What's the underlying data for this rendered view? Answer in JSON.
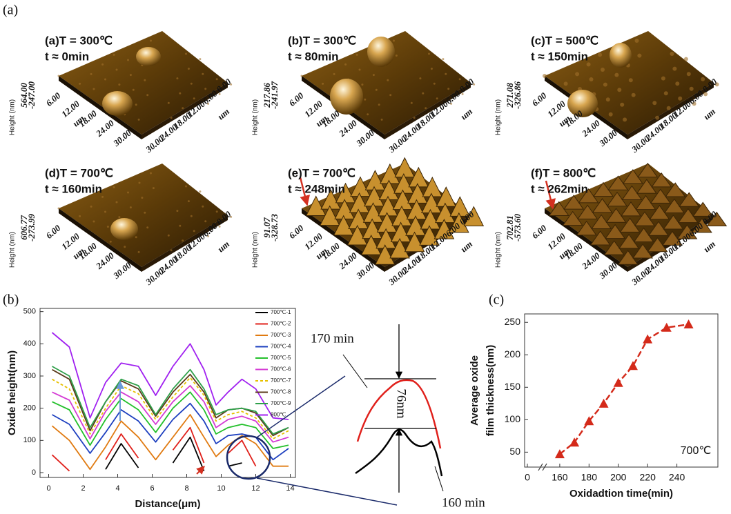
{
  "figure_label": "(a)",
  "afm_axes": {
    "height_title": "Height (nm)",
    "unit": "um",
    "left_ticks": [
      "6.00",
      "12.00",
      "18.00",
      "24.00",
      "30.00"
    ],
    "right_ticks": [
      "0.00",
      "6.00",
      "12.00",
      "18.00",
      "24.00",
      "30.00"
    ]
  },
  "afm_panels": [
    {
      "title": "(a)T = 300℃",
      "time": "t ≈ 0min",
      "height_labels": [
        "564.00",
        "-247.00"
      ]
    },
    {
      "title": "(b)T = 300℃",
      "time": "t ≈ 80min",
      "height_labels": [
        "217.86",
        "-241.97"
      ]
    },
    {
      "title": "(c)T = 500℃",
      "time": "t ≈ 150min",
      "height_labels": [
        "271.08",
        "-326.86"
      ]
    },
    {
      "title": "(d)T = 700℃",
      "time": "t ≈ 160min",
      "height_labels": [
        "606.77",
        "-273.99"
      ]
    },
    {
      "title": "(e)T = 700℃",
      "time": "t ≈ 248min",
      "height_labels": [
        "91.07",
        "-328.73"
      ]
    },
    {
      "title": "(f)T = 800℃",
      "time": "t ≈ 262min",
      "height_labels": [
        "702.81",
        "-573.60"
      ]
    }
  ],
  "chart_data": [
    {
      "type": "line",
      "panel_label": "(b)",
      "x_label": "Distance(μm)",
      "y_label": "Oxide height(nm)",
      "xlim": [
        -0.5,
        14.3
      ],
      "ylim": [
        -15,
        510
      ],
      "xticks": [
        0,
        2,
        4,
        6,
        8,
        10,
        12,
        14
      ],
      "yticks": [
        0,
        100,
        200,
        300,
        400,
        500
      ],
      "legend": "upper right",
      "x": [
        0.2,
        1.2,
        2.4,
        3.3,
        4.2,
        5.2,
        6.2,
        7.2,
        8.2,
        9.0,
        9.7,
        10.4,
        11.2,
        12.0,
        13.0,
        13.9
      ],
      "series": [
        {
          "name": "700℃-1",
          "color": "#000000",
          "values": [
            null,
            null,
            null,
            10,
            90,
            15,
            null,
            30,
            110,
            5,
            null,
            20,
            30,
            null,
            null,
            null
          ]
        },
        {
          "name": "700℃-2",
          "color": "#e0201b",
          "values": [
            55,
            5,
            null,
            40,
            120,
            45,
            null,
            70,
            140,
            30,
            null,
            60,
            100,
            20,
            null,
            null
          ]
        },
        {
          "name": "700℃-3",
          "color": "#e07a10",
          "values": [
            145,
            100,
            10,
            80,
            160,
            110,
            40,
            110,
            180,
            110,
            50,
            85,
            115,
            90,
            20,
            20
          ]
        },
        {
          "name": "700℃-4",
          "color": "#1d3fbf",
          "values": [
            180,
            150,
            60,
            125,
            195,
            160,
            95,
            165,
            215,
            160,
            90,
            115,
            120,
            110,
            40,
            75
          ]
        },
        {
          "name": "700℃-5",
          "color": "#22c02a",
          "values": [
            220,
            195,
            85,
            165,
            230,
            195,
            125,
            200,
            250,
            195,
            120,
            140,
            150,
            140,
            75,
            85
          ]
        },
        {
          "name": "700℃-6",
          "color": "#d43ad4",
          "values": [
            250,
            225,
            105,
            190,
            250,
            220,
            150,
            220,
            270,
            220,
            140,
            165,
            175,
            160,
            95,
            110
          ]
        },
        {
          "name": "700℃-7",
          "color": "#e6c000",
          "line_style": "dashed",
          "values": [
            290,
            260,
            120,
            200,
            270,
            245,
            165,
            235,
            295,
            240,
            160,
            180,
            190,
            170,
            105,
            130
          ]
        },
        {
          "name": "700℃-8",
          "color": "#5a3a1a",
          "values": [
            320,
            290,
            130,
            220,
            285,
            260,
            175,
            250,
            305,
            250,
            170,
            195,
            200,
            185,
            115,
            140
          ]
        },
        {
          "name": "700℃-9",
          "color": "#2fa04a",
          "values": [
            330,
            300,
            140,
            220,
            290,
            270,
            180,
            260,
            320,
            260,
            180,
            195,
            200,
            190,
            120,
            140
          ]
        },
        {
          "name": "800℃",
          "color": "#a020f0",
          "values": [
            435,
            390,
            170,
            280,
            340,
            330,
            240,
            330,
            400,
            320,
            210,
            250,
            290,
            260,
            170,
            165
          ]
        }
      ],
      "annotations": [
        "170 min",
        "160 min",
        "76nm"
      ]
    },
    {
      "type": "line",
      "panel_label": "(c)",
      "x_label": "Oxidadtion time(min)",
      "y_label": [
        "Average oxide",
        "film thickness(nm)"
      ],
      "axis_break": true,
      "xlim": [
        136,
        268
      ],
      "ylim": [
        27,
        263
      ],
      "xticks": [
        0,
        160,
        180,
        200,
        220,
        240
      ],
      "yticks": [
        50,
        100,
        150,
        200,
        250
      ],
      "x": [
        160,
        170,
        180,
        190,
        200,
        210,
        220,
        233,
        248
      ],
      "series": [
        {
          "color": "#d42a1a",
          "line_style": "dashed",
          "marker": "triangle",
          "values": [
            47,
            65,
            98,
            125,
            157,
            183,
            224,
            242,
            247
          ]
        }
      ],
      "annotation": "700℃"
    }
  ]
}
